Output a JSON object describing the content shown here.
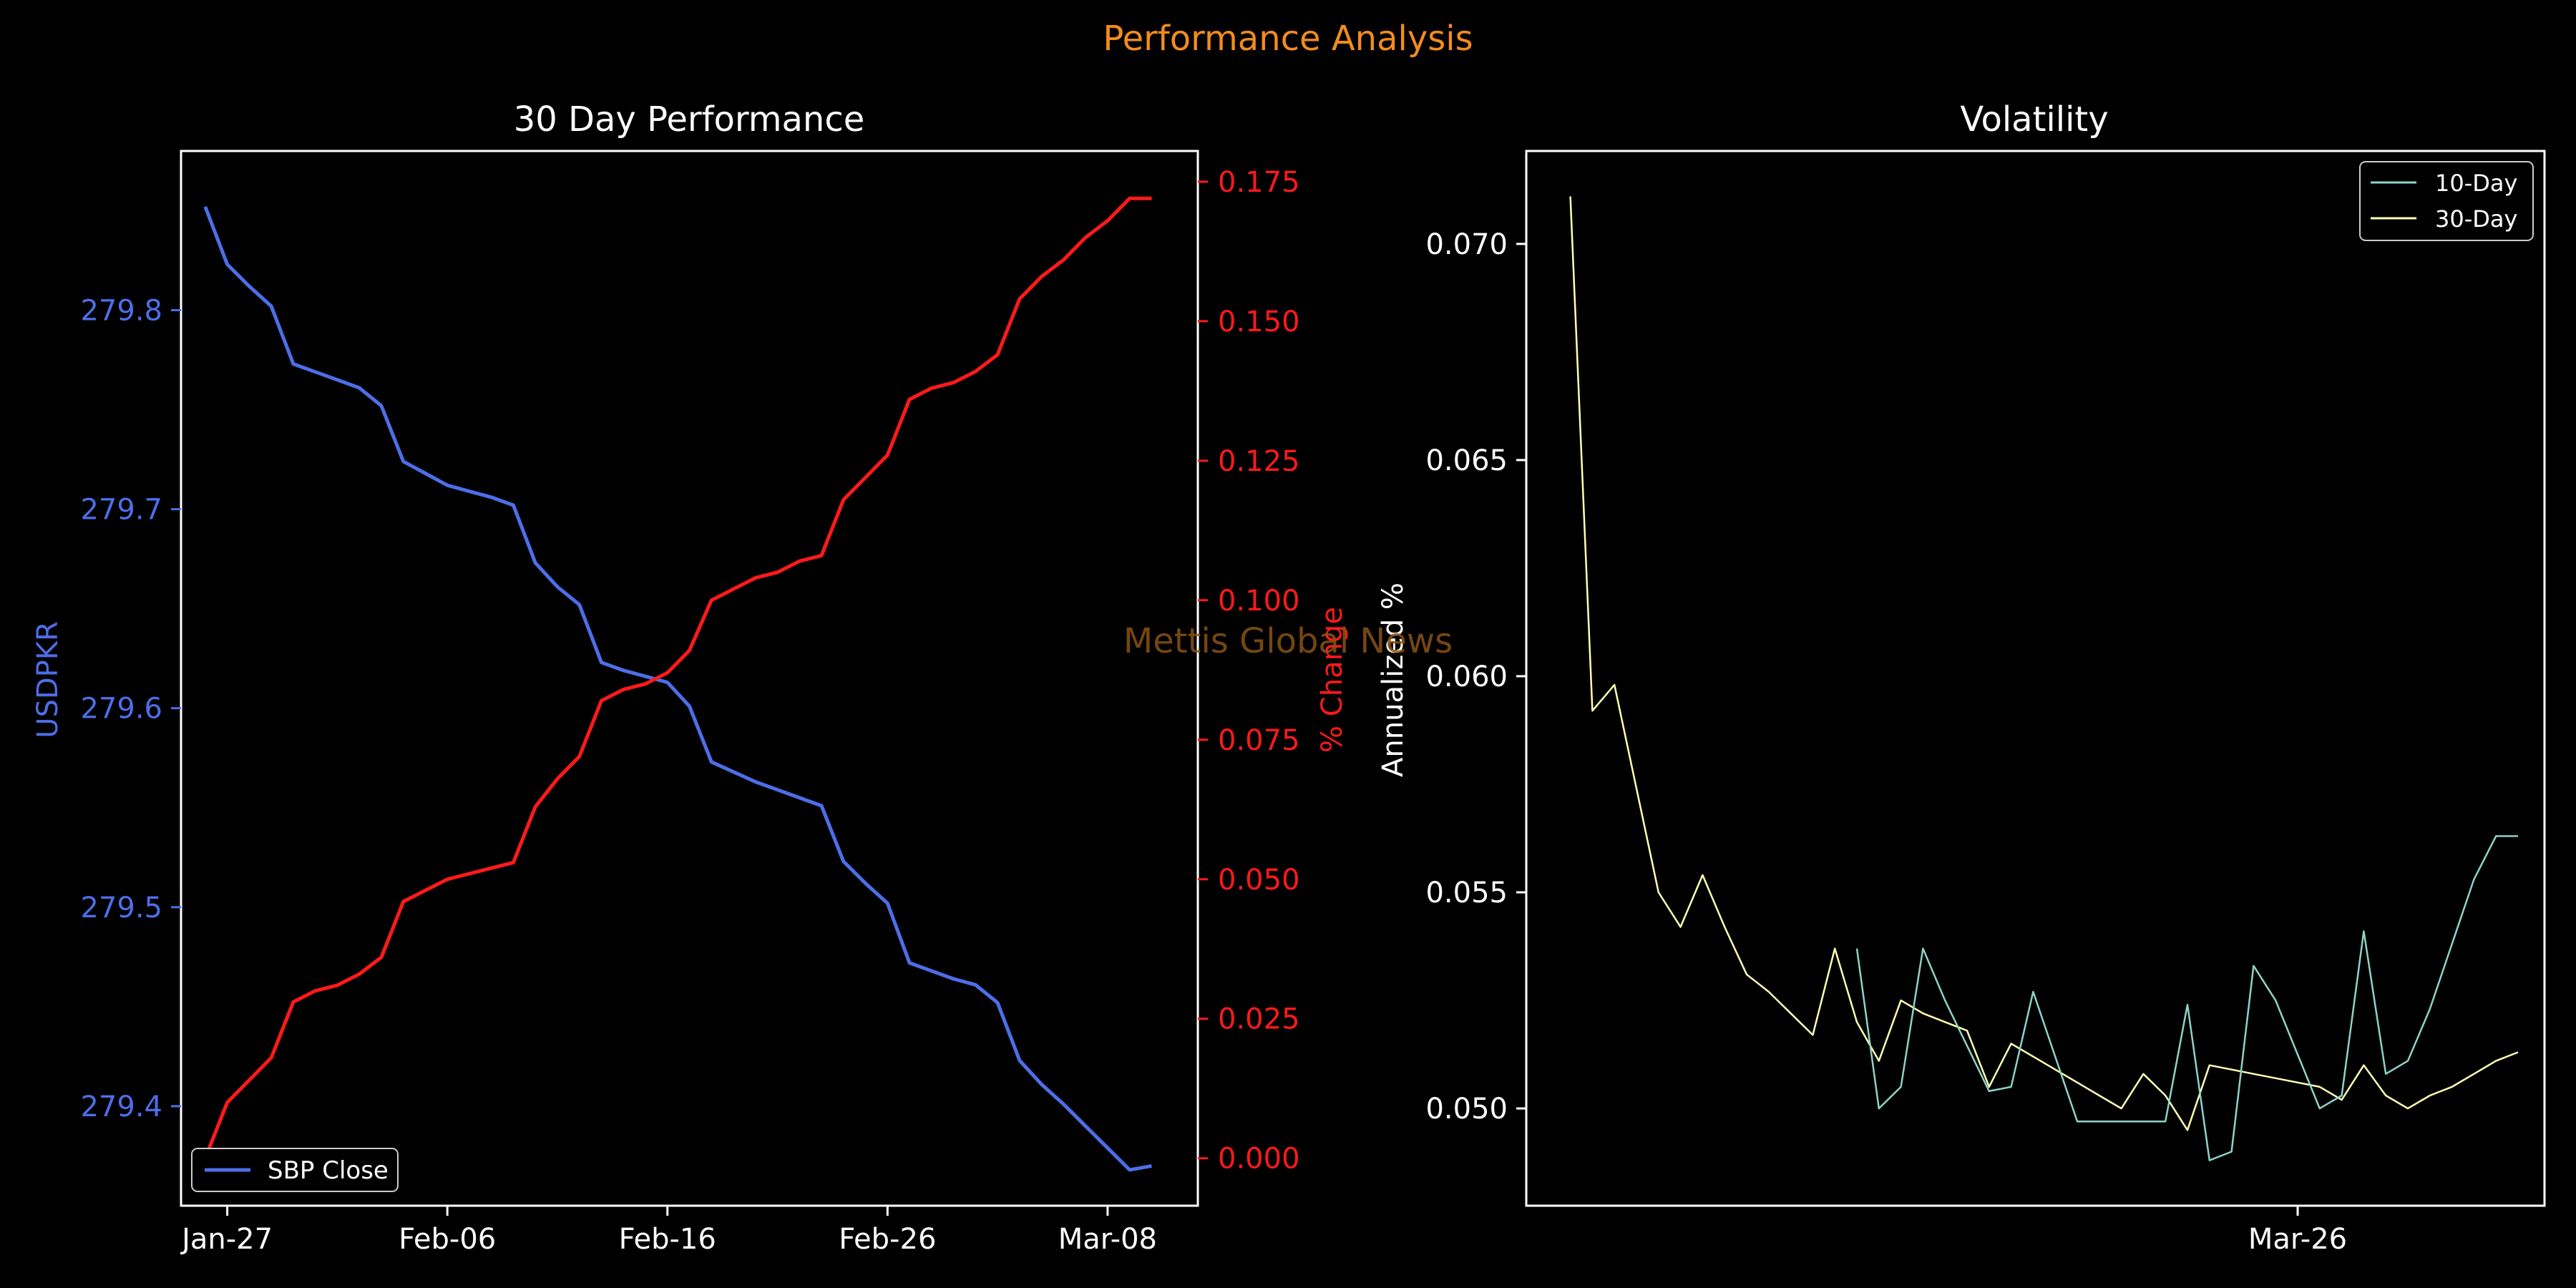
{
  "figure": {
    "suptitle": "Performance Analysis",
    "watermark": "Mettis Global News",
    "colors": {
      "background": "#000000",
      "suptitle": "#f28c1e",
      "watermark": "#8a5316"
    }
  },
  "chart_data": [
    {
      "type": "line",
      "title": "30 Day Performance",
      "xlabel": "",
      "ylabel": "USDPKR",
      "ylabel_right": "% Change",
      "x_ticks": [
        "Jan-27",
        "Feb-06",
        "Feb-16",
        "Feb-26",
        "Mar-08"
      ],
      "x_tick_positions": [
        1,
        11,
        21,
        31,
        41
      ],
      "xlim": [
        -1.1,
        45.1
      ],
      "ylim": [
        279.35,
        279.88
      ],
      "ylim_right": [
        -0.0085,
        0.1805
      ],
      "y_ticks": [
        279.4,
        279.5,
        279.6,
        279.7,
        279.8
      ],
      "y_ticks_right": [
        0.0,
        0.025,
        0.05,
        0.075,
        0.1,
        0.125,
        0.15,
        0.175
      ],
      "y_tick_labels_right": [
        "0.000",
        "0.025",
        "0.050",
        "0.075",
        "0.100",
        "0.125",
        "0.150",
        "0.175"
      ],
      "legend": "lower-left",
      "series": [
        {
          "name": "SBP Close",
          "axis": "left",
          "color": "#4d6ee8",
          "x": [
            0,
            1,
            2,
            3,
            4,
            5,
            6,
            7,
            8,
            9,
            10,
            11,
            12,
            13,
            14,
            15,
            16,
            17,
            18,
            19,
            20,
            21,
            22,
            23,
            24,
            25,
            26,
            27,
            28,
            29,
            30,
            31,
            32,
            33,
            34,
            35,
            36,
            37,
            38,
            39,
            40,
            41,
            42,
            43
          ],
          "values": [
            279.852,
            279.823,
            279.812,
            279.802,
            279.773,
            279.769,
            279.765,
            279.761,
            279.752,
            279.724,
            279.718,
            279.712,
            279.709,
            279.706,
            279.702,
            279.673,
            279.661,
            279.652,
            279.623,
            279.619,
            279.616,
            279.613,
            279.601,
            279.573,
            279.568,
            279.563,
            279.559,
            279.555,
            279.551,
            279.523,
            279.512,
            279.502,
            279.472,
            279.468,
            279.464,
            279.461,
            279.452,
            279.423,
            279.411,
            279.401,
            279.39,
            279.379,
            279.368,
            279.37
          ]
        },
        {
          "axis": "right",
          "color": "#ff1a1a",
          "x": [
            0,
            1,
            2,
            3,
            4,
            5,
            6,
            7,
            8,
            9,
            10,
            11,
            12,
            13,
            14,
            15,
            16,
            17,
            18,
            19,
            20,
            21,
            22,
            23,
            24,
            25,
            26,
            27,
            28,
            29,
            30,
            31,
            32,
            33,
            34,
            35,
            36,
            37,
            38,
            39,
            40,
            41,
            42,
            43
          ],
          "values": [
            0.0,
            0.01,
            0.014,
            0.018,
            0.028,
            0.03,
            0.031,
            0.033,
            0.036,
            0.046,
            0.048,
            0.05,
            0.051,
            0.052,
            0.053,
            0.063,
            0.068,
            0.072,
            0.082,
            0.084,
            0.085,
            0.087,
            0.091,
            0.1,
            0.102,
            0.104,
            0.105,
            0.107,
            0.108,
            0.118,
            0.122,
            0.126,
            0.136,
            0.138,
            0.139,
            0.141,
            0.144,
            0.154,
            0.158,
            0.161,
            0.165,
            0.168,
            0.172,
            0.172
          ]
        }
      ]
    },
    {
      "type": "line",
      "title": "Volatility",
      "xlabel": "",
      "ylabel": "Annualized %",
      "x_ticks": [
        "Mar-26"
      ],
      "x_tick_positions": [
        33
      ],
      "xlim": [
        -2.0,
        44.2
      ],
      "ylim": [
        0.04775,
        0.07215
      ],
      "y_ticks": [
        0.05,
        0.055,
        0.06,
        0.065,
        0.07
      ],
      "y_tick_labels": [
        "0.050",
        "0.055",
        "0.060",
        "0.065",
        "0.070"
      ],
      "legend": "top-right",
      "series": [
        {
          "name": "10-Day",
          "color": "#8dd3c7",
          "x": [
            13,
            14,
            15,
            16,
            17,
            19,
            20,
            21,
            22,
            23,
            24,
            25,
            27,
            28,
            29,
            30,
            31,
            32,
            34,
            35,
            36,
            37,
            38,
            39,
            40,
            41,
            42,
            43
          ],
          "values": [
            0.0537,
            0.05,
            0.0505,
            0.0537,
            0.0525,
            0.0504,
            0.0505,
            0.0527,
            0.0512,
            0.0497,
            0.0497,
            0.0497,
            0.0497,
            0.0524,
            0.0488,
            0.049,
            0.0533,
            0.0525,
            0.05,
            0.0503,
            0.0541,
            0.0508,
            0.0511,
            0.0523,
            0.0538,
            0.0553,
            0.0563,
            0.0563
          ]
        },
        {
          "name": "30-Day",
          "color": "#ffffb3",
          "x": [
            0,
            1,
            2,
            3,
            4,
            5,
            6,
            7,
            8,
            9,
            10,
            11,
            12,
            13,
            14,
            15,
            16,
            17,
            18,
            19,
            20,
            21,
            22,
            23,
            24,
            25,
            26,
            27,
            28,
            29,
            30,
            31,
            32,
            33,
            34,
            35,
            36,
            37,
            38,
            39,
            40,
            41,
            42,
            43
          ],
          "values": [
            0.0711,
            0.0592,
            0.0598,
            0.0574,
            0.055,
            0.0542,
            0.0554,
            0.0542,
            0.0531,
            0.0527,
            0.0522,
            0.0517,
            0.0537,
            0.052,
            0.0511,
            0.0525,
            0.0522,
            0.052,
            0.0518,
            0.0505,
            0.0515,
            0.0512,
            0.0509,
            0.0506,
            0.0503,
            0.05,
            0.0508,
            0.0503,
            0.0495,
            0.051,
            0.0509,
            0.0508,
            0.0507,
            0.0506,
            0.0505,
            0.0502,
            0.051,
            0.0503,
            0.05,
            0.0503,
            0.0505,
            0.0508,
            0.0511,
            0.0513
          ]
        }
      ]
    }
  ]
}
